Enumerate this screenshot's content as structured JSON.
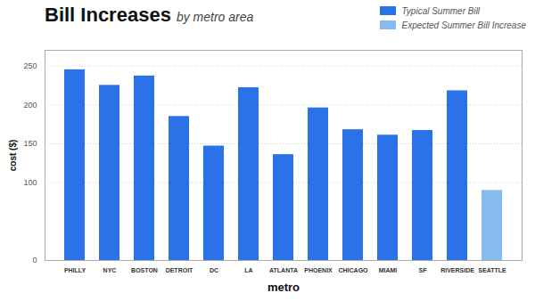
{
  "chart_data": {
    "type": "bar",
    "title": "Bill Increases",
    "subtitle": "by metro area",
    "xlabel": "metro",
    "ylabel": "cost ($)",
    "categories": [
      "PHILLY",
      "NYC",
      "BOSTON",
      "DETROIT",
      "DC",
      "LA",
      "ATLANTA",
      "PHOENIX",
      "CHICAGO",
      "MIAMI",
      "SF",
      "RIVERSIDE",
      "SEATTLE"
    ],
    "series": [
      {
        "name": "Typical Summer Bill",
        "color": "#2B72E8",
        "values": [
          245,
          225,
          237,
          185,
          147,
          222,
          136,
          196,
          168,
          161,
          167,
          218,
          null
        ]
      },
      {
        "name": "Expected Summer Bill Increase",
        "color": "#85BBEF",
        "values": [
          null,
          null,
          null,
          null,
          null,
          null,
          null,
          null,
          null,
          null,
          null,
          null,
          90
        ]
      }
    ],
    "ylim": [
      0,
      270
    ],
    "yticks": [
      0,
      100,
      150,
      200,
      250
    ],
    "grid": true,
    "legend": "upper right"
  }
}
